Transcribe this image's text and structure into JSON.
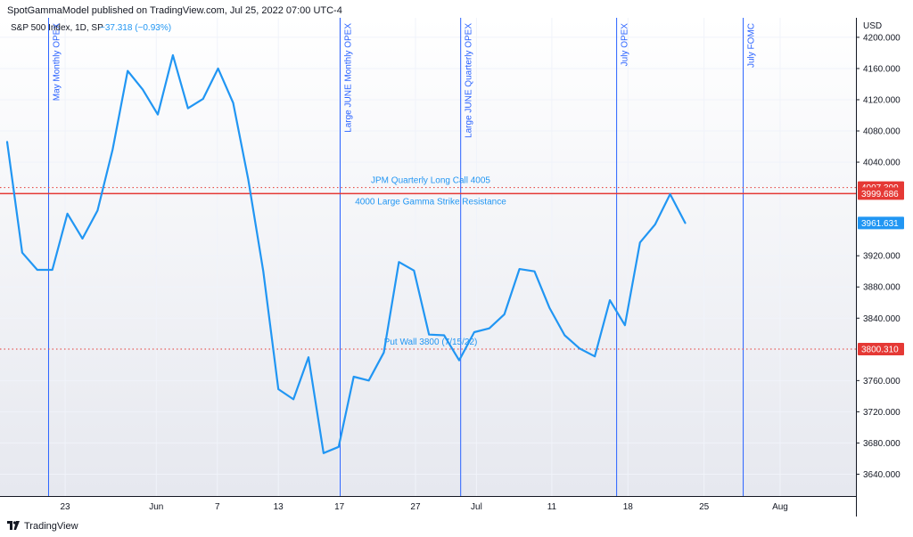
{
  "header": {
    "published_text": "SpotGammaModel published on TradingView.com, Jul 25, 2022 07:00 UTC-4"
  },
  "footer": {
    "brand": "TradingView",
    "logo_icon": "tradingview-logo-icon"
  },
  "colors": {
    "series": "#2196f3",
    "vline": "#2962ff",
    "red": "#e53935",
    "panel_top": "#ffffff",
    "panel_bottom": "#e6e8ef"
  },
  "chart_data": {
    "type": "line",
    "legend": {
      "title": "S&P 500 Index, 1D, SP",
      "change": "−37.318 (−0.93%)"
    },
    "currency": "USD",
    "ylim": [
      3612,
      4225
    ],
    "y_ticks": [
      {
        "value": 4200,
        "label": "4200.000"
      },
      {
        "value": 4160,
        "label": "4160.000"
      },
      {
        "value": 4120,
        "label": "4120.000"
      },
      {
        "value": 4080,
        "label": "4080.000"
      },
      {
        "value": 4040,
        "label": "4040.000"
      },
      {
        "value": 3920,
        "label": "3920.000"
      },
      {
        "value": 3880,
        "label": "3880.000"
      },
      {
        "value": 3840,
        "label": "3840.000"
      },
      {
        "value": 3760,
        "label": "3760.000"
      },
      {
        "value": 3720,
        "label": "3720.000"
      },
      {
        "value": 3680,
        "label": "3680.000"
      },
      {
        "value": 3640,
        "label": "3640.000"
      }
    ],
    "x_ticks": [
      {
        "index": 3.85,
        "label": "23"
      },
      {
        "index": 9.9,
        "label": "Jun"
      },
      {
        "index": 13.95,
        "label": "7"
      },
      {
        "index": 18,
        "label": "13"
      },
      {
        "index": 22.05,
        "label": "17"
      },
      {
        "index": 27.1,
        "label": "27"
      },
      {
        "index": 31.15,
        "label": "Jul"
      },
      {
        "index": 36.15,
        "label": "11"
      },
      {
        "index": 41.2,
        "label": "18"
      },
      {
        "index": 46.25,
        "label": "25"
      },
      {
        "index": 51.3,
        "label": "Aug"
      }
    ],
    "xlim": [
      0,
      56.3
    ],
    "series": [
      {
        "values": [
          4066,
          3924,
          3902,
          3902,
          3974,
          3942,
          3978,
          4056,
          4157,
          4133,
          4101,
          4177,
          4109,
          4121,
          4160,
          4116,
          4018,
          3900,
          3749,
          3736,
          3790,
          3667,
          3675,
          3765,
          3760,
          3796,
          3912,
          3901,
          3819,
          3818,
          3786,
          3822,
          3827,
          3845,
          3903,
          3900,
          3853,
          3818,
          3801,
          3791,
          3863,
          3831,
          3937,
          3960,
          3999,
          3962
        ]
      }
    ],
    "horizontal_lines": [
      {
        "value": 4007.399,
        "style": "dotted",
        "label": "JPM Quarterly Long Call 4005",
        "tag": "4007.399"
      },
      {
        "value": 3999.686,
        "style": "solid",
        "label": "4000 Large Gamma Strike Resistance",
        "tag": "3999.686"
      },
      {
        "value": 3800.31,
        "style": "dotted",
        "label": "Put Wall 3800 (7/15/22)",
        "tag": "3800.310"
      }
    ],
    "last_price_tag": "3961.631",
    "vertical_lines": [
      {
        "index": 2.75,
        "label": "May Monthly OPEX"
      },
      {
        "index": 22.1,
        "label": "Large JUNE Monthly OPEX"
      },
      {
        "index": 30.1,
        "label": "Large JUNE Quarterly OPEX"
      },
      {
        "index": 40.45,
        "label": "July OPEX"
      },
      {
        "index": 48.85,
        "label": "July FOMC"
      }
    ]
  }
}
